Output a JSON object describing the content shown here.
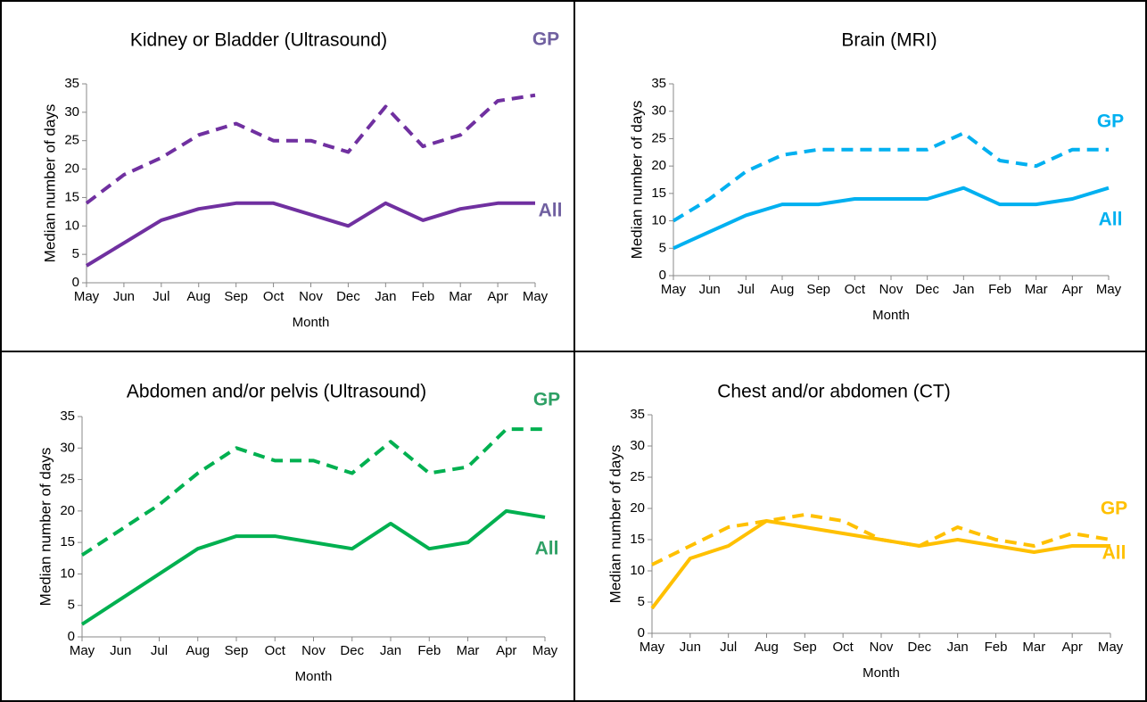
{
  "chart_data": [
    {
      "type": "line",
      "title": "Kidney or Bladder (Ultrasound)",
      "x_label": "Month",
      "y_label": "Median number of days",
      "categories": [
        "May",
        "Jun",
        "Jul",
        "Aug",
        "Sep",
        "Oct",
        "Nov",
        "Dec",
        "Jan",
        "Feb",
        "Mar",
        "Apr",
        "May"
      ],
      "series": [
        {
          "name": "GP",
          "color": "#7030a0",
          "label_color": "#7060a0",
          "dashed": true,
          "values": [
            14,
            19,
            22,
            26,
            28,
            25,
            25,
            23,
            31,
            24,
            26,
            32,
            33
          ]
        },
        {
          "name": "All",
          "color": "#7030a0",
          "label_color": "#7060a0",
          "dashed": false,
          "values": [
            3,
            7,
            11,
            13,
            14,
            14,
            12,
            10,
            14,
            11,
            13,
            14,
            14
          ]
        }
      ],
      "ylim": [
        0,
        35
      ],
      "yticks": [
        0,
        5,
        10,
        15,
        20,
        25,
        30,
        35
      ]
    },
    {
      "type": "line",
      "title": "Brain (MRI)",
      "x_label": "Month",
      "y_label": "Median number of days",
      "categories": [
        "May",
        "Jun",
        "Jul",
        "Aug",
        "Sep",
        "Oct",
        "Nov",
        "Dec",
        "Jan",
        "Feb",
        "Mar",
        "Apr",
        "May"
      ],
      "series": [
        {
          "name": "GP",
          "color": "#00b0f0",
          "label_color": "#00b0f0",
          "dashed": true,
          "values": [
            10,
            14,
            19,
            22,
            23,
            23,
            23,
            23,
            26,
            21,
            20,
            23,
            23
          ]
        },
        {
          "name": "All",
          "color": "#00b0f0",
          "label_color": "#00b0f0",
          "dashed": false,
          "values": [
            5,
            8,
            11,
            13,
            13,
            14,
            14,
            14,
            16,
            13,
            13,
            14,
            16
          ]
        }
      ],
      "ylim": [
        0,
        35
      ],
      "yticks": [
        0,
        5,
        10,
        15,
        20,
        25,
        30,
        35
      ]
    },
    {
      "type": "line",
      "title": "Abdomen and/or pelvis (Ultrasound)",
      "x_label": "Month",
      "y_label": "Median number of days",
      "categories": [
        "May",
        "Jun",
        "Jul",
        "Aug",
        "Sep",
        "Oct",
        "Nov",
        "Dec",
        "Jan",
        "Feb",
        "Mar",
        "Apr",
        "May"
      ],
      "series": [
        {
          "name": "GP",
          "color": "#00b050",
          "label_color": "#2ea065",
          "dashed": true,
          "values": [
            13,
            17,
            21,
            26,
            30,
            28,
            28,
            26,
            31,
            26,
            27,
            33,
            33
          ]
        },
        {
          "name": "All",
          "color": "#00b050",
          "label_color": "#2ea065",
          "dashed": false,
          "values": [
            2,
            6,
            10,
            14,
            16,
            16,
            15,
            14,
            18,
            14,
            15,
            20,
            19
          ]
        }
      ],
      "ylim": [
        0,
        35
      ],
      "yticks": [
        0,
        5,
        10,
        15,
        20,
        25,
        30,
        35
      ]
    },
    {
      "type": "line",
      "title": "Chest and/or abdomen (CT)",
      "x_label": "Month",
      "y_label": "Median number of days",
      "categories": [
        "May",
        "Jun",
        "Jul",
        "Aug",
        "Sep",
        "Oct",
        "Nov",
        "Dec",
        "Jan",
        "Feb",
        "Mar",
        "Apr",
        "May"
      ],
      "series": [
        {
          "name": "GP",
          "color": "#ffc000",
          "label_color": "#ffc000",
          "dashed": true,
          "values": [
            11,
            14,
            17,
            18,
            19,
            18,
            15,
            14,
            17,
            15,
            14,
            16,
            15
          ]
        },
        {
          "name": "All",
          "color": "#ffc000",
          "label_color": "#ffc000",
          "dashed": false,
          "values": [
            4,
            12,
            14,
            18,
            17,
            16,
            15,
            14,
            15,
            14,
            13,
            14,
            14
          ]
        }
      ],
      "ylim": [
        0,
        35
      ],
      "yticks": [
        0,
        5,
        10,
        15,
        20,
        25,
        30,
        35
      ]
    }
  ]
}
